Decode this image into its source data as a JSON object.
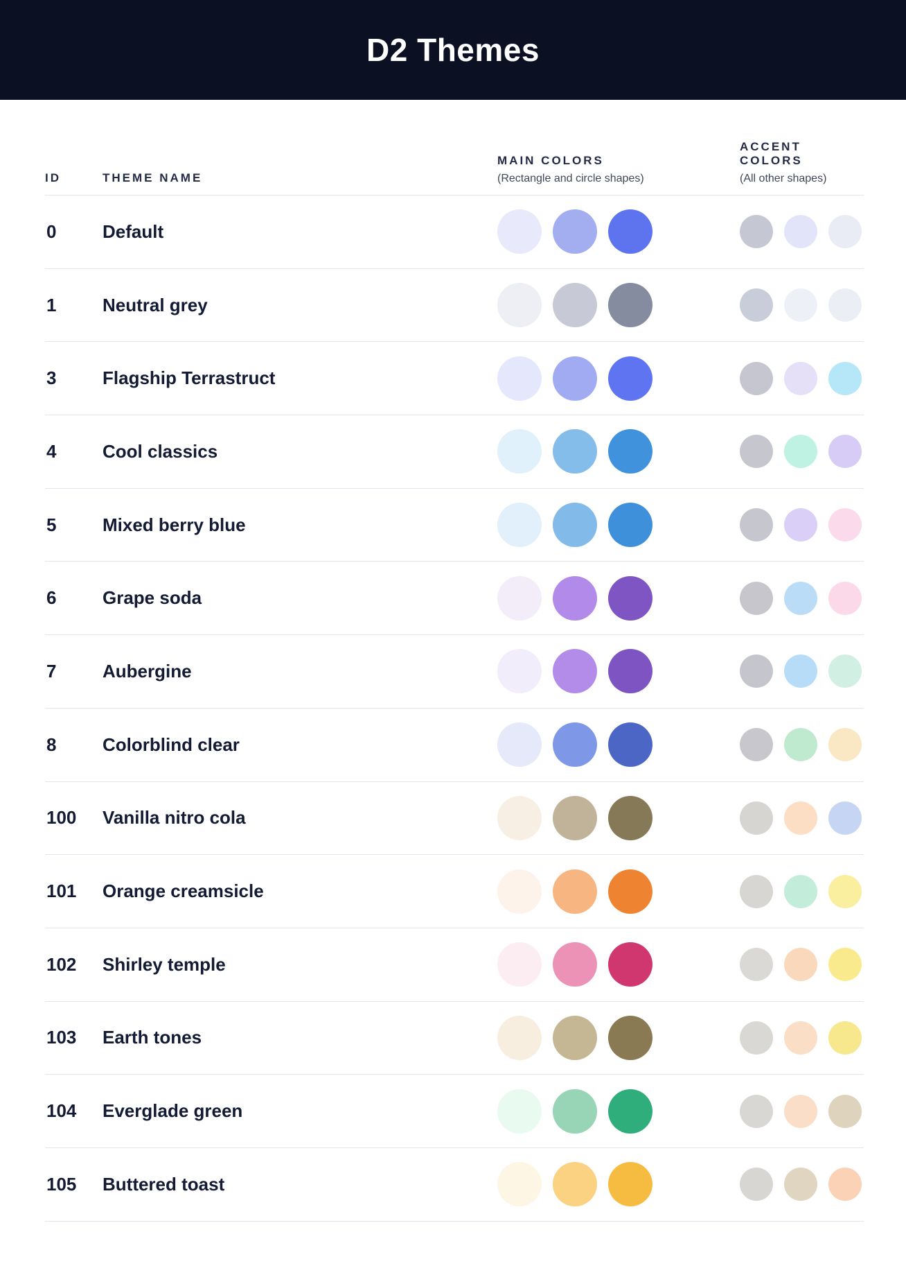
{
  "page": {
    "title": "D2 Themes"
  },
  "colors": {
    "titlebar_bg": "#0B1022",
    "heading_text": "#222A45",
    "row_text": "#131A33",
    "divider": "#E2E4EE"
  },
  "table": {
    "headers": {
      "id": "ID",
      "theme_name": "THEME NAME",
      "main_colors": "MAIN COLORS",
      "main_colors_sub": "(Rectangle and circle shapes)",
      "accent_colors": "ACCENT COLORS",
      "accent_colors_sub": "(All other shapes)"
    },
    "rows": [
      {
        "id": "0",
        "name": "Default",
        "main_colors": [
          "#E8EAFB",
          "#A2AEF0",
          "#5E74EE"
        ],
        "accent_colors": [
          "#C5C7D3",
          "#E2E5F9",
          "#EAECF5"
        ]
      },
      {
        "id": "1",
        "name": "Neutral grey",
        "main_colors": [
          "#EDEFF5",
          "#C7CAD6",
          "#868CA0"
        ],
        "accent_colors": [
          "#C9CCD9",
          "#EDF0F7",
          "#EBEEF5"
        ]
      },
      {
        "id": "3",
        "name": "Flagship Terrastruct",
        "main_colors": [
          "#E5E8FC",
          "#A0ABF1",
          "#5E74F1"
        ],
        "accent_colors": [
          "#C5C6D0",
          "#E6DFF8",
          "#B5E7F8"
        ]
      },
      {
        "id": "4",
        "name": "Cool classics",
        "main_colors": [
          "#E1F1FB",
          "#84BCEA",
          "#3F92DB"
        ],
        "accent_colors": [
          "#C5C6CE",
          "#BFF2E3",
          "#D6CCF5"
        ]
      },
      {
        "id": "5",
        "name": "Mixed berry blue",
        "main_colors": [
          "#E1F0FA",
          "#82BAE9",
          "#3E90DA"
        ],
        "accent_colors": [
          "#C5C6CE",
          "#DACFF6",
          "#FBDBEB"
        ]
      },
      {
        "id": "6",
        "name": "Grape soda",
        "main_colors": [
          "#F3EDFA",
          "#B28AE9",
          "#7E55C3"
        ],
        "accent_colors": [
          "#C6C6CC",
          "#BADCF7",
          "#FBD9E9"
        ]
      },
      {
        "id": "7",
        "name": "Aubergine",
        "main_colors": [
          "#F2EDFA",
          "#B38CEA",
          "#7D54C2"
        ],
        "accent_colors": [
          "#C5C6CD",
          "#B7DCF8",
          "#D1F0E3"
        ]
      },
      {
        "id": "8",
        "name": "Colorblind clear",
        "main_colors": [
          "#E5E9FA",
          "#7E97E6",
          "#4B66C5"
        ],
        "accent_colors": [
          "#C7C7CD",
          "#C0EACF",
          "#FAE7C3"
        ]
      },
      {
        "id": "100",
        "name": "Vanilla nitro cola",
        "main_colors": [
          "#F8EFE4",
          "#C0B399",
          "#867957"
        ],
        "accent_colors": [
          "#D7D5D1",
          "#FBDEC3",
          "#C7D5F4"
        ]
      },
      {
        "id": "101",
        "name": "Orange creamsicle",
        "main_colors": [
          "#FDF3EB",
          "#F7B582",
          "#EE8432"
        ],
        "accent_colors": [
          "#D8D6D2",
          "#C3ECDB",
          "#FAEF9E"
        ]
      },
      {
        "id": "102",
        "name": "Shirley temple",
        "main_colors": [
          "#FCEDF3",
          "#EB92B6",
          "#D1376F"
        ],
        "accent_colors": [
          "#DBD9D5",
          "#FAD8BB",
          "#F9EB8D"
        ]
      },
      {
        "id": "103",
        "name": "Earth tones",
        "main_colors": [
          "#F7EEDF",
          "#C5B694",
          "#8A7A54"
        ],
        "accent_colors": [
          "#DAD8D5",
          "#FBDEC6",
          "#F7E88E"
        ]
      },
      {
        "id": "104",
        "name": "Everglade green",
        "main_colors": [
          "#E9FAF1",
          "#98D4B6",
          "#2FAE7C"
        ],
        "accent_colors": [
          "#D9D7D3",
          "#FBDEC7",
          "#DED3BC"
        ]
      },
      {
        "id": "105",
        "name": "Buttered toast",
        "main_colors": [
          "#FDF6E4",
          "#FAD282",
          "#F6BB41"
        ],
        "accent_colors": [
          "#D8D6D3",
          "#DFD5C0",
          "#FBD2B6"
        ]
      }
    ]
  }
}
